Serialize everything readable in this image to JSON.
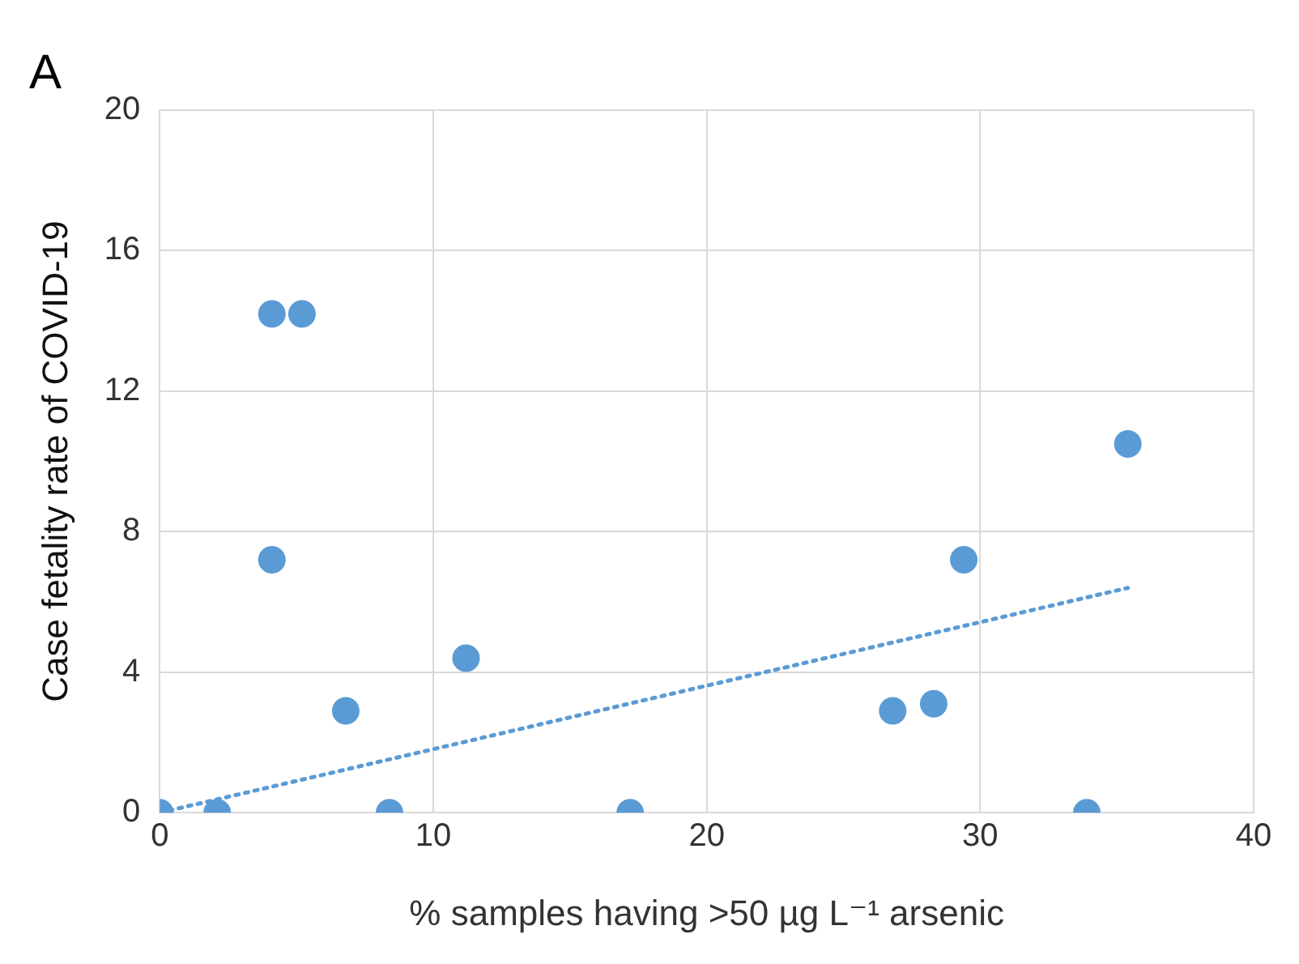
{
  "chart_data": {
    "type": "scatter",
    "title": "A",
    "xlabel": "% samples having >50 µg L⁻¹ arsenic",
    "ylabel": "Case fetality rate of COVID-19",
    "xlim": [
      0,
      40
    ],
    "xticks": [
      0,
      10,
      20,
      30,
      40
    ],
    "ylim": [
      0,
      20
    ],
    "yticks": [
      0,
      4,
      8,
      12,
      16,
      20
    ],
    "grid": true,
    "legend": false,
    "series": [
      {
        "type": "scatter",
        "color": "#5b9bd5",
        "marker": "circle",
        "x": [
          0,
          2.1,
          4.1,
          5.2,
          4.1,
          6.8,
          8.4,
          11.2,
          17.2,
          26.8,
          28.3,
          29.4,
          33.9,
          35.4
        ],
        "values": [
          0,
          0,
          14.2,
          14.2,
          7.2,
          2.9,
          0,
          4.4,
          0,
          2.9,
          3.1,
          7.2,
          0,
          10.5
        ]
      },
      {
        "type": "line",
        "color": "#5b9bd5",
        "marker": "none",
        "line_style": "dotted",
        "x": [
          0,
          35.4
        ],
        "values": [
          0,
          6.4
        ]
      }
    ]
  }
}
